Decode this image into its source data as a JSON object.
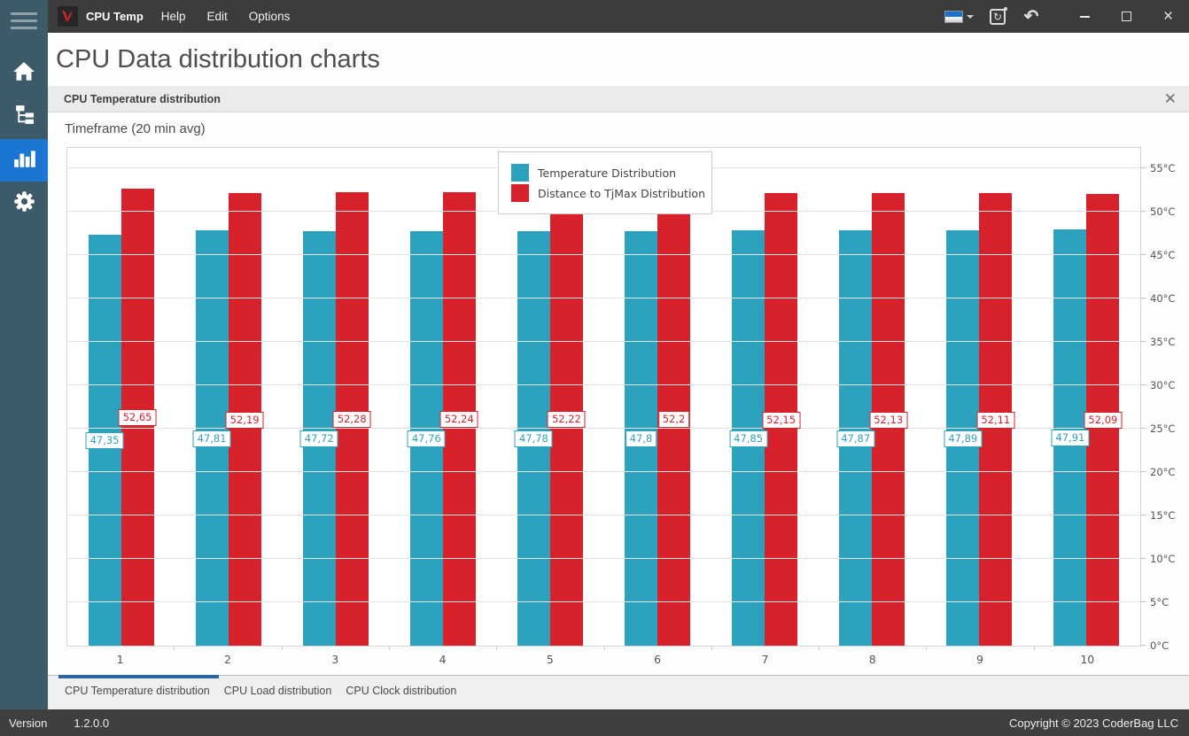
{
  "titlebar": {
    "app_name": "CPU Temp",
    "menus": [
      {
        "label": "Help"
      },
      {
        "label": "Edit"
      },
      {
        "label": "Options"
      }
    ],
    "icons": {
      "logo": "app-logo-icon",
      "language": "language-flag-icon",
      "refresh": "refresh-icon",
      "undo": "undo-icon",
      "minimize": "minimize-icon",
      "maximize": "maximize-icon",
      "close": "close-icon"
    }
  },
  "sidebar": {
    "items": [
      {
        "icon": "menu-icon",
        "active": false
      },
      {
        "icon": "home-icon",
        "active": false
      },
      {
        "icon": "tree-view-icon",
        "active": false
      },
      {
        "icon": "bar-chart-icon",
        "active": true
      },
      {
        "icon": "gear-icon",
        "active": false
      }
    ],
    "active_color": "#1A76D2",
    "background_color": "#3C5A68"
  },
  "page": {
    "title": "CPU Data distribution charts"
  },
  "panel": {
    "title": "CPU Temperature distribution",
    "close_icon": "close-icon",
    "timeframe_label": "Timeframe (20 min avg)"
  },
  "chart_data": {
    "type": "bar",
    "title": "CPU Temperature distribution",
    "categories": [
      "1",
      "2",
      "3",
      "4",
      "5",
      "6",
      "7",
      "8",
      "9",
      "10"
    ],
    "series": [
      {
        "name": "Temperature Distribution",
        "color": "#2CA2BE",
        "values": [
          47.35,
          47.81,
          47.72,
          47.76,
          47.78,
          47.8,
          47.85,
          47.87,
          47.89,
          47.91
        ],
        "labels": [
          "47,35",
          "47,81",
          "47,72",
          "47,76",
          "47,78",
          "47,8",
          "47,85",
          "47,87",
          "47,89",
          "47,91"
        ]
      },
      {
        "name": "Distance to TjMax Distribution",
        "color": "#D7212B",
        "values": [
          52.65,
          52.19,
          52.28,
          52.24,
          52.22,
          52.2,
          52.15,
          52.13,
          52.11,
          52.09
        ],
        "labels": [
          "52,65",
          "52,19",
          "52,28",
          "52,24",
          "52,22",
          "52,2",
          "52,15",
          "52,13",
          "52,11",
          "52,09"
        ]
      }
    ],
    "y_unit": "°C",
    "ylim": [
      0,
      55
    ],
    "y_tick_step": 5,
    "y_ticks": [
      "0°C",
      "5°C",
      "10°C",
      "15°C",
      "20°C",
      "25°C",
      "30°C",
      "35°C",
      "40°C",
      "45°C",
      "50°C",
      "55°C"
    ],
    "grid": "horizontal",
    "legend_position": "top-center",
    "y_axis_side": "right"
  },
  "tabs": [
    {
      "label": "CPU Temperature distribution",
      "active": true
    },
    {
      "label": "CPU Load distribution",
      "active": false
    },
    {
      "label": "CPU Clock distribution",
      "active": false
    }
  ],
  "statusbar": {
    "version_label": "Version",
    "version_value": "1.2.0.0",
    "copyright": "Copyright © 2023 CoderBag LLC"
  }
}
